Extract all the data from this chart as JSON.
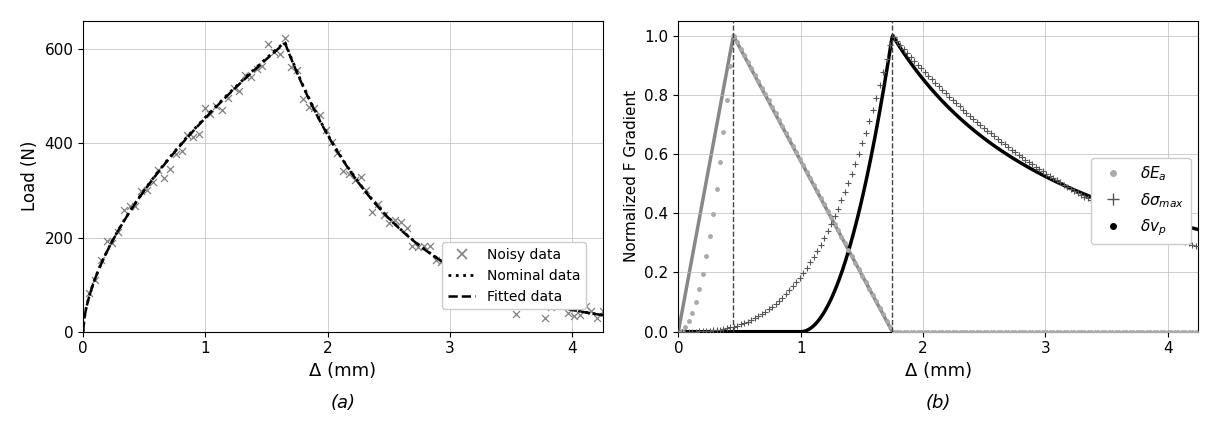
{
  "fig_width": 12.19,
  "fig_height": 4.38,
  "dpi": 100,
  "panel_a": {
    "xlim": [
      0,
      4.25
    ],
    "ylim": [
      0,
      660
    ],
    "xticks": [
      0,
      1,
      2,
      3,
      4
    ],
    "yticks": [
      0,
      200,
      400,
      600
    ],
    "xlabel": "Δ (mm)",
    "ylabel": "Load (N)",
    "label_a": "(a)",
    "noisy_color": "#808080",
    "nominal_color": "#000000",
    "fitted_color": "#000000",
    "legend_labels": [
      "Noisy data",
      "Nominal data",
      "Fitted data"
    ],
    "peak_x": 1.65,
    "peak_load": 615
  },
  "panel_b": {
    "xlim": [
      0,
      4.25
    ],
    "ylim": [
      0,
      1.05
    ],
    "xticks": [
      0,
      1,
      2,
      3,
      4
    ],
    "yticks": [
      0,
      0.2,
      0.4,
      0.6,
      0.8,
      1.0
    ],
    "xlabel": "Δ (mm)",
    "ylabel": "Normalized F Gradient",
    "label_b": "(b)",
    "vline1": 0.45,
    "vline2": 1.75,
    "dEa_color": "#aaaaaa",
    "dsigma_color": "#555555",
    "dvp_color": "#000000",
    "gray_line_color": "#888888"
  }
}
